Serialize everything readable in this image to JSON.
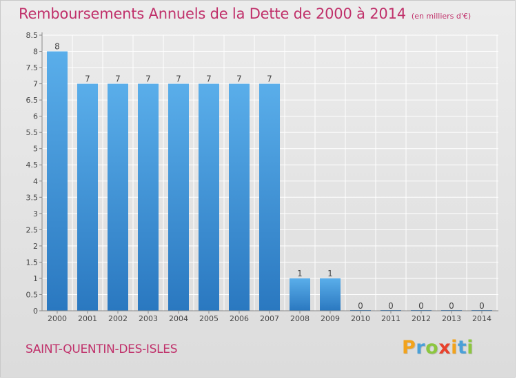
{
  "title": "Remboursements Annuels de la Dette de 2000 à 2014",
  "subtitle": "(en milliers d'€)",
  "commune": "SAINT-QUENTIN-DES-ISLES",
  "brand": {
    "letters": [
      "P",
      "r",
      "o",
      "x",
      "i",
      "t",
      "i"
    ],
    "colors": [
      "#f2a31c",
      "#4aa0d8",
      "#8cc63f",
      "#e8412c",
      "#f2a31c",
      "#4aa0d8",
      "#8cc63f"
    ]
  },
  "colors": {
    "accent": "#c0306a",
    "bar_top": "#5aaeea",
    "bar_bottom": "#2a78c0"
  },
  "chart_data": {
    "type": "bar",
    "title": "Remboursements Annuels de la Dette de 2000 à 2014",
    "subtitle": "(en milliers d'€)",
    "categories": [
      "2000",
      "2001",
      "2002",
      "2003",
      "2004",
      "2005",
      "2006",
      "2007",
      "2008",
      "2009",
      "2010",
      "2011",
      "2012",
      "2013",
      "2014"
    ],
    "values": [
      8,
      7,
      7,
      7,
      7,
      7,
      7,
      7,
      1,
      1,
      0,
      0,
      0,
      0,
      0
    ],
    "data_labels": [
      "8",
      "7",
      "7",
      "7",
      "7",
      "7",
      "7",
      "7",
      "1",
      "1",
      "0",
      "0",
      "0",
      "0",
      "0"
    ],
    "yticks": [
      "0",
      "0.5",
      "1",
      "1.5",
      "2",
      "2.5",
      "3",
      "3.5",
      "4",
      "4.5",
      "5",
      "5.5",
      "6",
      "6.5",
      "7",
      "7.5",
      "8",
      "8.5"
    ],
    "ylim": [
      0,
      8.5
    ],
    "grid": true,
    "xlabel": "",
    "ylabel": ""
  }
}
